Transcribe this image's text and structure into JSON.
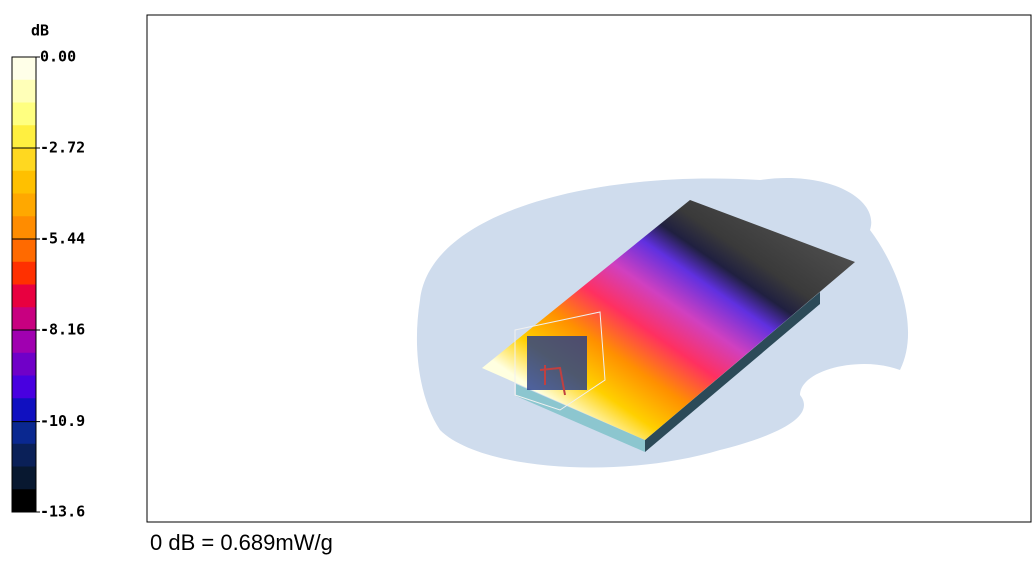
{
  "colorbar": {
    "unit": "dB",
    "ticks": [
      {
        "value": 0,
        "label": "0.00"
      },
      -2.72,
      -5.44,
      -8.16,
      -10.9,
      -13.6
    ]
  },
  "caption": "0 dB = 0.689mW/g"
}
